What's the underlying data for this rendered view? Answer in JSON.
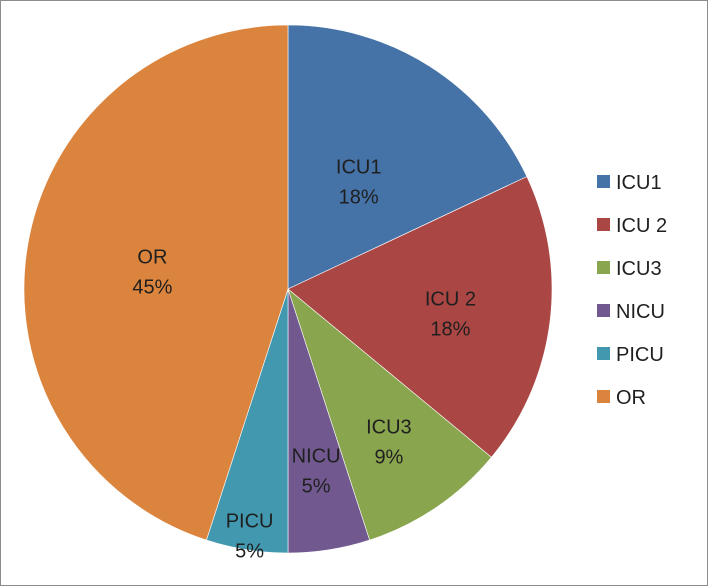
{
  "chart_data": {
    "type": "pie",
    "categories": [
      "ICU1",
      "ICU 2",
      "ICU3",
      "NICU",
      "PICU",
      "OR"
    ],
    "values": [
      18,
      18,
      9,
      5,
      5,
      45
    ],
    "data_labels": [
      "18%",
      "18%",
      "9%",
      "5%",
      "5%",
      "45%"
    ],
    "colors": [
      "#4572a7",
      "#aa4643",
      "#89a54e",
      "#71588f",
      "#4198af",
      "#db843d"
    ],
    "legend_position": "right",
    "start_angle": "12 o'clock, clockwise"
  }
}
